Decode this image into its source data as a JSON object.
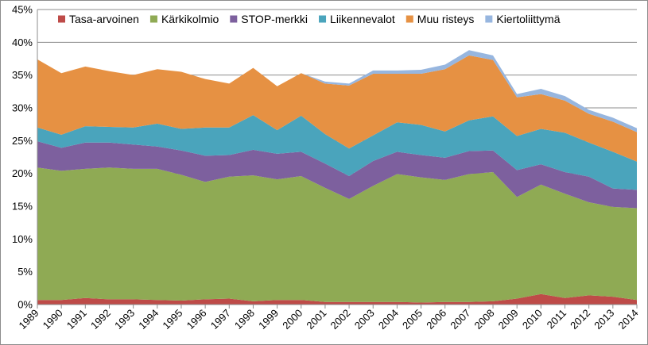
{
  "chart_data": {
    "type": "area",
    "stacked": true,
    "x": [
      "1989",
      "1990",
      "1991",
      "1992",
      "1993",
      "1994",
      "1995",
      "1996",
      "1997",
      "1998",
      "1999",
      "2000",
      "2001",
      "2002",
      "2003",
      "2004",
      "2005",
      "2006",
      "2007",
      "2008",
      "2009",
      "2010",
      "2011",
      "2012",
      "2013",
      "2014"
    ],
    "ylim": [
      0,
      45
    ],
    "yticks": [
      0,
      5,
      10,
      15,
      20,
      25,
      30,
      35,
      40,
      45
    ],
    "ytick_suffix": "%",
    "grid": true,
    "legend_position": "top",
    "series": [
      {
        "name": "Tasa-arvoinen",
        "color": "#be4b48",
        "values": [
          0.7,
          0.7,
          1.0,
          0.8,
          0.8,
          0.7,
          0.6,
          0.8,
          0.9,
          0.5,
          0.7,
          0.7,
          0.4,
          0.4,
          0.4,
          0.4,
          0.3,
          0.4,
          0.4,
          0.5,
          0.9,
          1.6,
          1.0,
          1.4,
          1.2,
          0.7
        ]
      },
      {
        "name": "Kärkikolmio",
        "color": "#8faa54",
        "values": [
          20.2,
          19.7,
          19.7,
          20.1,
          19.9,
          20.0,
          19.2,
          17.9,
          18.6,
          19.2,
          18.4,
          18.9,
          17.4,
          15.7,
          17.7,
          19.5,
          19.1,
          18.6,
          19.5,
          19.7,
          15.5,
          16.7,
          15.9,
          14.2,
          13.7,
          14.0
        ]
      },
      {
        "name": "STOP-merkki",
        "color": "#7d609e",
        "values": [
          4.0,
          3.5,
          4.0,
          3.8,
          3.7,
          3.4,
          3.7,
          4.0,
          3.3,
          3.9,
          3.9,
          3.7,
          3.7,
          3.5,
          3.8,
          3.4,
          3.4,
          3.4,
          3.5,
          3.3,
          4.1,
          3.1,
          3.3,
          3.9,
          2.8,
          2.8
        ]
      },
      {
        "name": "Liikennevalot",
        "color": "#4aa4bc",
        "values": [
          2.1,
          2.0,
          2.5,
          2.4,
          2.6,
          3.5,
          3.3,
          4.3,
          4.2,
          5.3,
          3.6,
          5.5,
          4.5,
          4.2,
          3.9,
          4.5,
          4.6,
          4.0,
          4.7,
          5.2,
          5.2,
          5.4,
          6.0,
          5.2,
          5.6,
          4.3
        ]
      },
      {
        "name": "Muu risteys",
        "color": "#e69143",
        "values": [
          10.4,
          9.4,
          9.1,
          8.5,
          8.0,
          8.3,
          8.7,
          7.4,
          6.7,
          7.2,
          6.7,
          6.5,
          7.7,
          9.6,
          9.4,
          7.4,
          7.8,
          9.5,
          9.9,
          8.6,
          5.9,
          5.3,
          4.9,
          4.4,
          4.6,
          4.5
        ]
      },
      {
        "name": "Kiertoliittymä",
        "color": "#97b6df",
        "values": [
          0,
          0,
          0,
          0,
          0,
          0,
          0,
          0,
          0,
          0,
          0,
          0,
          0.3,
          0.3,
          0.5,
          0.5,
          0.6,
          0.7,
          0.8,
          0.7,
          0.5,
          0.8,
          0.7,
          0.6,
          0.6,
          0.6
        ]
      }
    ]
  }
}
